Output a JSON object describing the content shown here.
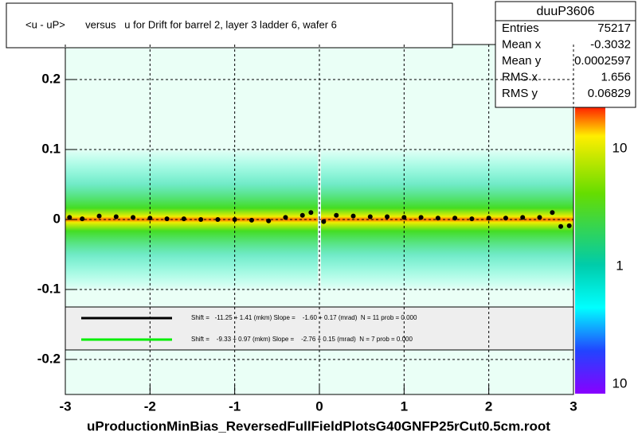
{
  "chart_data": {
    "type": "scatter",
    "title": "<u - uP>       versus   u for Drift for barrel 2, layer 3 ladder 6, wafer 6",
    "xlim": [
      -3,
      3
    ],
    "xticks": [
      -3,
      -2,
      -1,
      0,
      1,
      2,
      3
    ],
    "ylim": [
      -0.25,
      0.25
    ],
    "yticks": [
      -0.2,
      -0.1,
      0,
      0.1,
      0.2
    ],
    "grid": true,
    "series": [
      {
        "name": "profile",
        "color": "#000000",
        "x": [
          -2.95,
          -2.8,
          -2.6,
          -2.4,
          -2.2,
          -2.0,
          -1.8,
          -1.6,
          -1.4,
          -1.2,
          -1.0,
          -0.8,
          -0.6,
          -0.4,
          -0.2,
          -0.1,
          0.05,
          0.2,
          0.4,
          0.6,
          0.8,
          1.0,
          1.2,
          1.4,
          1.6,
          1.8,
          2.0,
          2.2,
          2.4,
          2.6,
          2.75,
          2.85,
          2.95
        ],
        "values": [
          0.003,
          0.001,
          0.005,
          0.004,
          0.003,
          0.002,
          0.001,
          0.001,
          0.0,
          0.0,
          0.0,
          -0.001,
          -0.002,
          0.003,
          0.006,
          0.01,
          -0.003,
          0.006,
          0.005,
          0.004,
          0.004,
          0.003,
          0.003,
          0.002,
          0.002,
          0.001,
          0.002,
          0.002,
          0.003,
          0.003,
          0.01,
          -0.01,
          -0.009
        ]
      }
    ],
    "stats": {
      "name": "duuP3606",
      "rows": [
        [
          "Entries",
          "75217"
        ],
        [
          "Mean x",
          "-0.3032"
        ],
        [
          "Mean y",
          "0.0002597"
        ],
        [
          "RMS x",
          "1.656"
        ],
        [
          "RMS y",
          "0.06829"
        ]
      ]
    },
    "fits": [
      {
        "color": "#000000",
        "text": "Shift =   -11.25 + 1.41 (mkm) Slope =    -1.60 + 0.17 (mrad)  N = 11 prob = 0.000"
      },
      {
        "color": "#00ee00",
        "text": "Shift =    -9.33 + 0.97 (mkm) Slope =    -2.76 + 0.15 (mrad)  N = 7 prob = 0.000"
      }
    ],
    "colorbar_labels": [
      "10",
      "1",
      "10"
    ],
    "footer": "uProductionMinBias_ReversedFullFieldPlotsG40GNFP25rCut0.5cm.root"
  }
}
